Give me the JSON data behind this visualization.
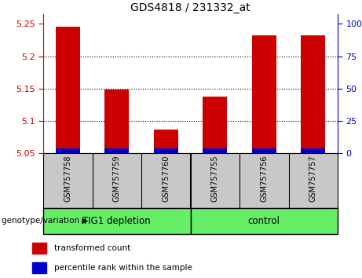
{
  "title": "GDS4818 / 231332_at",
  "samples": [
    "GSM757758",
    "GSM757759",
    "GSM757760",
    "GSM757755",
    "GSM757756",
    "GSM757757"
  ],
  "red_values": [
    5.245,
    5.148,
    5.086,
    5.138,
    5.232,
    5.232
  ],
  "blue_values": [
    5.057,
    5.057,
    5.057,
    5.057,
    5.057,
    5.057
  ],
  "base_value": 5.05,
  "ylim": [
    5.05,
    5.265
  ],
  "yticks_left": [
    5.05,
    5.1,
    5.15,
    5.2,
    5.25
  ],
  "yticks_right": [
    0,
    25,
    50,
    75,
    100
  ],
  "yticks_right_pos": [
    5.05,
    5.1,
    5.15,
    5.2,
    5.25
  ],
  "group1_label": "TIG1 depletion",
  "group2_label": "control",
  "group1_indices": [
    0,
    1,
    2
  ],
  "group2_indices": [
    3,
    4,
    5
  ],
  "group_color": "#66EE66",
  "bar_width": 0.5,
  "red_color": "#CC0000",
  "blue_color": "#0000CC",
  "left_axis_color": "#CC0000",
  "right_axis_color": "#0000CC",
  "xtick_bg_color": "#C8C8C8",
  "plot_bg_color": "#FFFFFF",
  "legend_red": "transformed count",
  "legend_blue": "percentile rank within the sample",
  "genotype_label": "genotype/variation",
  "title_fontsize": 10,
  "tick_fontsize": 8,
  "sample_fontsize": 7,
  "group_fontsize": 8.5,
  "legend_fontsize": 7.5,
  "genotype_fontsize": 7.5
}
